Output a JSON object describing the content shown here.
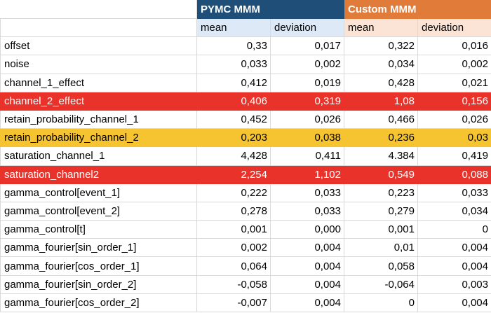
{
  "groups": {
    "pymc": "PYMC MMM",
    "custom": "Custom MMM"
  },
  "subheaders": {
    "pymc_mean": "mean",
    "pymc_dev": "deviation",
    "custom_mean": "mean",
    "custom_dev": "deviation"
  },
  "highlight_colors": {
    "red": "#e8322a",
    "yellow": "#f7c431",
    "pymc_header": "#1f4e79",
    "custom_header": "#e07b39"
  },
  "rows": [
    {
      "name": "offset",
      "pymc_mean": "0,33",
      "pymc_dev": "0,017",
      "custom_mean": "0,322",
      "custom_dev": "0,016",
      "highlight": "none"
    },
    {
      "name": "noise",
      "pymc_mean": "0,033",
      "pymc_dev": "0,002",
      "custom_mean": "0,034",
      "custom_dev": "0,002",
      "highlight": "none"
    },
    {
      "name": "channel_1_effect",
      "pymc_mean": "0,412",
      "pymc_dev": "0,019",
      "custom_mean": "0,428",
      "custom_dev": "0,021",
      "highlight": "none"
    },
    {
      "name": "channel_2_effect",
      "pymc_mean": "0,406",
      "pymc_dev": "0,319",
      "custom_mean": "1,08",
      "custom_dev": "0,156",
      "highlight": "red"
    },
    {
      "name": "retain_probability_channel_1",
      "pymc_mean": "0,452",
      "pymc_dev": "0,026",
      "custom_mean": "0,466",
      "custom_dev": "0,026",
      "highlight": "none"
    },
    {
      "name": "retain_probability_channel_2",
      "pymc_mean": "0,203",
      "pymc_dev": "0,038",
      "custom_mean": "0,236",
      "custom_dev": "0,03",
      "highlight": "yellow"
    },
    {
      "name": "saturation_channel_1",
      "pymc_mean": "4,428",
      "pymc_dev": "0,411",
      "custom_mean": "4.384",
      "custom_dev": "0,419",
      "highlight": "none"
    },
    {
      "name": "saturation_channel2",
      "pymc_mean": "2,254",
      "pymc_dev": "1,102",
      "custom_mean": "0,549",
      "custom_dev": "0,088",
      "highlight": "red"
    },
    {
      "name": "gamma_control[event_1]",
      "pymc_mean": "0,222",
      "pymc_dev": "0,033",
      "custom_mean": "0,223",
      "custom_dev": "0,033",
      "highlight": "none"
    },
    {
      "name": "gamma_control[event_2]",
      "pymc_mean": "0,278",
      "pymc_dev": "0,033",
      "custom_mean": "0,279",
      "custom_dev": "0,034",
      "highlight": "none"
    },
    {
      "name": "gamma_control[t]",
      "pymc_mean": "0,001",
      "pymc_dev": "0,000",
      "custom_mean": "0,001",
      "custom_dev": "0",
      "highlight": "none"
    },
    {
      "name": "gamma_fourier[sin_order_1]",
      "pymc_mean": "0,002",
      "pymc_dev": "0,004",
      "custom_mean": "0,01",
      "custom_dev": "0,004",
      "highlight": "none"
    },
    {
      "name": "gamma_fourier[cos_order_1]",
      "pymc_mean": "0,064",
      "pymc_dev": "0,004",
      "custom_mean": "0,058",
      "custom_dev": "0,004",
      "highlight": "none"
    },
    {
      "name": "gamma_fourier[sin_order_2]",
      "pymc_mean": "-0,058",
      "pymc_dev": "0,004",
      "custom_mean": "-0,064",
      "custom_dev": "0,003",
      "highlight": "none"
    },
    {
      "name": "gamma_fourier[cos_order_2]",
      "pymc_mean": "-0,007",
      "pymc_dev": "0,004",
      "custom_mean": "0",
      "custom_dev": "0,004",
      "highlight": "none"
    }
  ]
}
